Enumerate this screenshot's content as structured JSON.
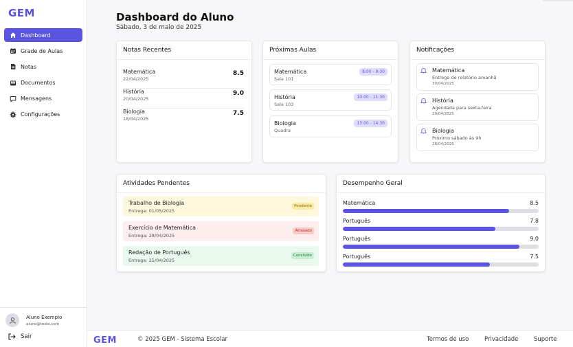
{
  "app": {
    "logo": "GEM"
  },
  "sidebar": {
    "items": [
      {
        "label": "Dashboard",
        "icon": "home-icon",
        "active": true
      },
      {
        "label": "Grade de Aulas",
        "icon": "calendar-icon",
        "active": false
      },
      {
        "label": "Notas",
        "icon": "document-icon",
        "active": false
      },
      {
        "label": "Documentos",
        "icon": "inbox-icon",
        "active": false
      },
      {
        "label": "Mensagens",
        "icon": "message-icon",
        "active": false
      },
      {
        "label": "Configurações",
        "icon": "gear-icon",
        "active": false
      }
    ],
    "user": {
      "name": "Aluno Exemplo",
      "email": "aluno@teste.com",
      "icon": "user-icon"
    },
    "logout_label": "Sair"
  },
  "header": {
    "title": "Dashboard do Aluno",
    "date": "Sábado, 3 de maio de 2025"
  },
  "notas": {
    "title": "Notas Recentes",
    "rows": [
      {
        "subject": "Matemática",
        "date": "22/04/2025",
        "grade": "8.5"
      },
      {
        "subject": "História",
        "date": "20/04/2025",
        "grade": "9.0"
      },
      {
        "subject": "Biologia",
        "date": "18/04/2025",
        "grade": "7.5"
      }
    ]
  },
  "aulas": {
    "title": "Próximas Aulas",
    "items": [
      {
        "subject": "Matemática",
        "room": "Sala 101",
        "time": "8:00 - 9:30"
      },
      {
        "subject": "História",
        "room": "Sala 103",
        "time": "10:00 - 11:30"
      },
      {
        "subject": "Biologia",
        "room": "Quadra",
        "time": "13:00 - 14:30"
      }
    ]
  },
  "notificacoes": {
    "title": "Notificações",
    "items": [
      {
        "title": "Matemática",
        "desc": "Entrega de relatório amanhã",
        "date": "30/04/2025"
      },
      {
        "title": "História",
        "desc": "Agendada para sexta-feira",
        "date": "29/04/2025"
      },
      {
        "title": "Biologia",
        "desc": "Próximo sábado às 9h",
        "date": "28/04/2025"
      }
    ]
  },
  "atividades": {
    "title": "Atividades Pendentes",
    "items": [
      {
        "title": "Trabalho de Biologia",
        "due": "Entrega: 01/05/2025",
        "status": "Pendente",
        "bg": "#fdf8dc",
        "badge_bg": "#fbe9a6",
        "badge_fg": "#8a6a00"
      },
      {
        "title": "Exercício de Matemática",
        "due": "Entrega: 28/04/2025",
        "status": "Atrasado",
        "bg": "#fdeeee",
        "badge_bg": "#f9caca",
        "badge_fg": "#b32d2d"
      },
      {
        "title": "Redação de Português",
        "due": "Entrega: 25/04/2025",
        "status": "Concluído",
        "bg": "#eaf9ee",
        "badge_bg": "#c6efd2",
        "badge_fg": "#1e7a3c"
      }
    ]
  },
  "desempenho": {
    "title": "Desempenho Geral",
    "max": 10,
    "items": [
      {
        "subject": "Matemática",
        "value": "8.5"
      },
      {
        "subject": "Português",
        "value": "7.8"
      },
      {
        "subject": "Português",
        "value": "9.0"
      },
      {
        "subject": "Português",
        "value": "7.5"
      }
    ]
  },
  "footer": {
    "logo": "GEM",
    "copyright": "© 2025 GEM - Sistema Escolar",
    "links": [
      "Termos de uso",
      "Privacidade",
      "Suporte"
    ]
  },
  "colors": {
    "accent": "#5b54e0",
    "border": "#e5e5ea",
    "track": "#dedee3"
  }
}
